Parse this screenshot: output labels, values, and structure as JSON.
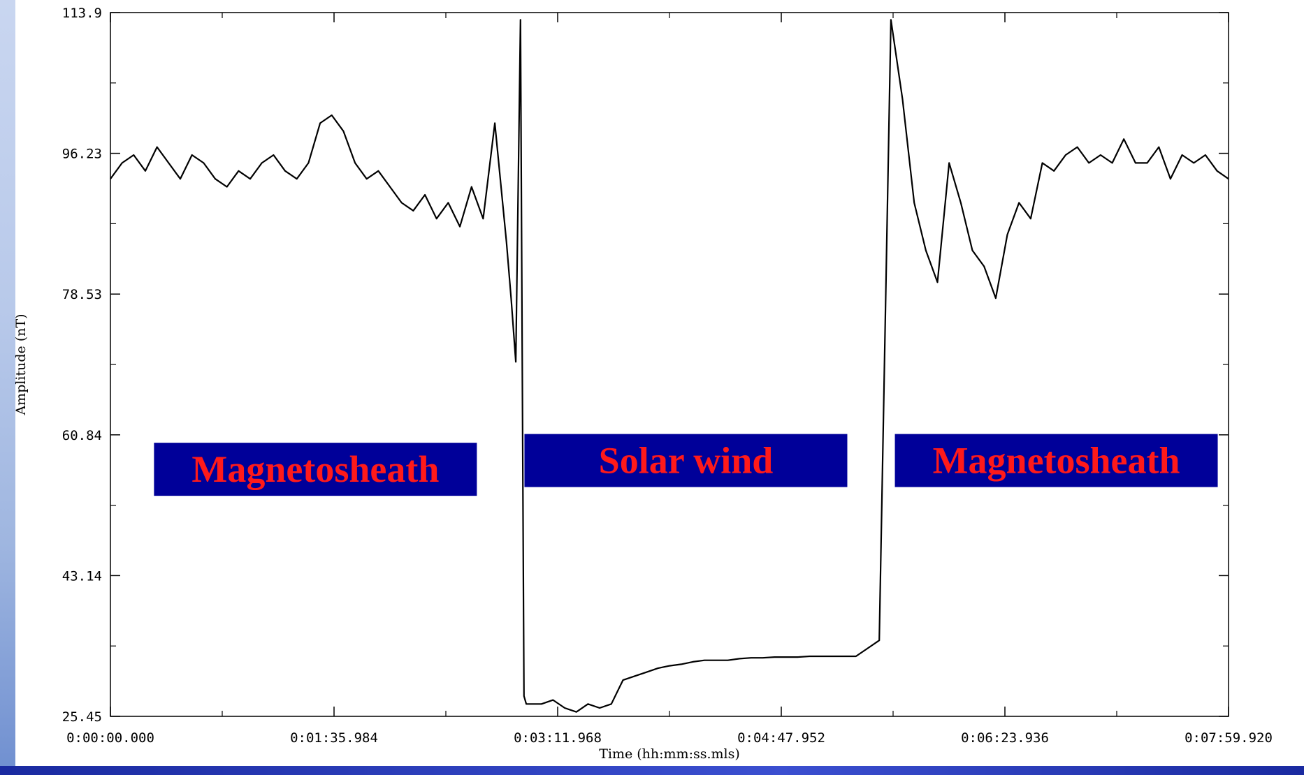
{
  "chart_data": {
    "type": "line",
    "xlabel": "Time (hh:mm:ss.mls)",
    "ylabel": "Amplitude (nT)",
    "ylim": [
      25.45,
      113.9
    ],
    "xlim_seconds": [
      0,
      479.92
    ],
    "y_ticks": [
      "113.9",
      "96.23",
      "78.53",
      "60.84",
      "43.14",
      "25.45"
    ],
    "x_ticks": [
      "0:00:00.000",
      "0:01:35.984",
      "0:03:11.968",
      "0:04:47.952",
      "0:06:23.936",
      "0:07:59.920"
    ],
    "grid": false,
    "annotations": [
      {
        "text": "Magnetosheath",
        "x_seconds": 88,
        "y": 56.5
      },
      {
        "text": "Solar wind",
        "x_seconds": 247,
        "y": 57.6
      },
      {
        "text": "Magnetosheath",
        "x_seconds": 406,
        "y": 57.6
      }
    ],
    "series": [
      {
        "x_seconds": [
          0,
          5,
          10,
          15,
          20,
          25,
          30,
          35,
          40,
          45,
          50,
          55,
          60,
          65,
          70,
          75,
          80,
          85,
          90,
          95,
          100,
          105,
          110,
          115,
          120,
          125,
          130,
          135,
          140,
          145,
          150,
          155,
          160,
          165,
          170,
          172,
          174,
          176,
          177.5,
          178.5,
          180,
          185,
          190,
          195,
          200,
          205,
          210,
          215,
          220,
          225,
          230,
          235,
          240,
          245,
          250,
          255,
          260,
          265,
          270,
          275,
          280,
          285,
          290,
          295,
          300,
          305,
          310,
          315,
          320,
          325,
          330,
          335,
          340,
          345,
          350,
          355,
          360,
          365,
          370,
          375,
          380,
          385,
          390,
          395,
          400,
          405,
          410,
          415,
          420,
          425,
          430,
          435,
          440,
          445,
          450,
          455,
          460,
          465,
          470,
          475,
          479.92
        ],
        "values": [
          93,
          95,
          96,
          94,
          97,
          95,
          93,
          96,
          95,
          93,
          92,
          94,
          93,
          95,
          96,
          94,
          93,
          95,
          100,
          101,
          99,
          95,
          93,
          94,
          92,
          90,
          89,
          91,
          88,
          90,
          87,
          92,
          88,
          100,
          85,
          78,
          70,
          113,
          28,
          27,
          27,
          27,
          27.5,
          26.5,
          26,
          27,
          26.5,
          27,
          30,
          30.5,
          31,
          31.5,
          31.8,
          32,
          32.3,
          32.5,
          32.5,
          32.5,
          32.7,
          32.8,
          32.8,
          32.9,
          32.9,
          32.9,
          33,
          33,
          33,
          33,
          33,
          34,
          35,
          113,
          103,
          90,
          84,
          80,
          95,
          90,
          84,
          82,
          78,
          86,
          90,
          88,
          95,
          94,
          96,
          97,
          95,
          96,
          95,
          98,
          95,
          95,
          97,
          93,
          96,
          95,
          96,
          94,
          93
        ]
      }
    ]
  }
}
